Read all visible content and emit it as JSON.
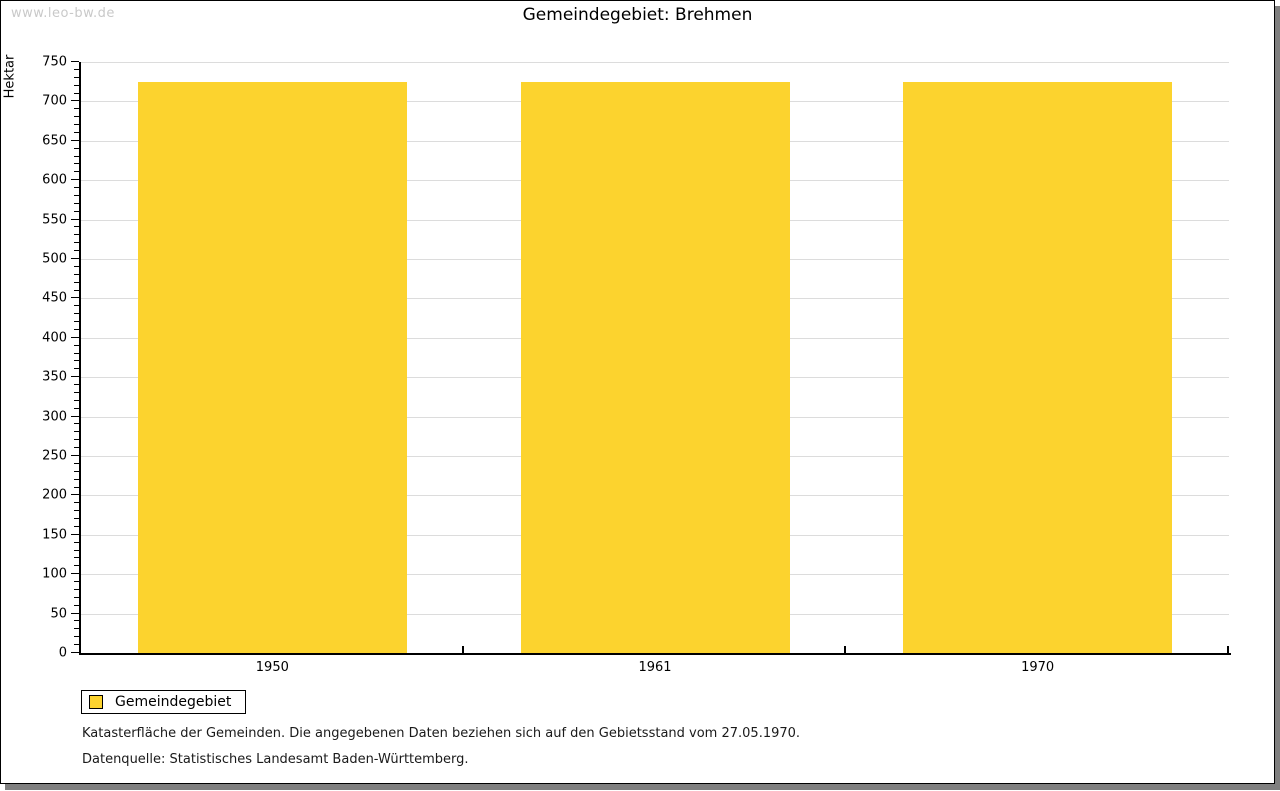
{
  "watermark": "www.leo-bw.de",
  "footer": {
    "line1": "Katasterfläche der Gemeinden. Die angegebenen Daten beziehen sich auf den Gebietsstand vom 27.05.1970.",
    "line2": "Datenquelle: Statistisches Landesamt Baden-Württemberg."
  },
  "chart_data": {
    "type": "bar",
    "title": "Gemeindegebiet: Brehmen",
    "categories": [
      "1950",
      "1961",
      "1970"
    ],
    "series": [
      {
        "name": "Gemeindegebiet",
        "values": [
          725,
          725,
          725
        ],
        "color": "#FCD32E"
      }
    ],
    "xlabel": "",
    "ylabel": "Hektar",
    "ylim": [
      0,
      750
    ],
    "y_ticks": [
      0,
      50,
      100,
      150,
      200,
      250,
      300,
      350,
      400,
      450,
      500,
      550,
      600,
      650,
      700,
      750
    ],
    "y_minor_tick_step": 10,
    "grid": "horizontal-major",
    "gridline_color": "#DCDCDC",
    "legend_position": "bottom-left",
    "bar_unit": "Hektar"
  }
}
